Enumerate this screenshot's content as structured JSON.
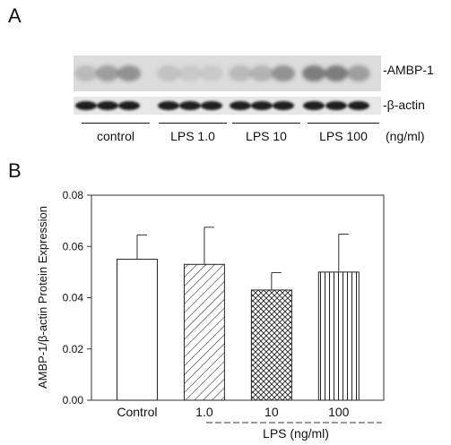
{
  "panel_a": {
    "letter": "A",
    "blot_labels": {
      "ambp": "-AMBP-1",
      "actin": "-β-actin"
    },
    "lane_groups": [
      "control",
      "LPS 1.0",
      "LPS 10",
      "LPS 100"
    ],
    "unit_label": "(ng/ml)",
    "ambp_intensity": [
      0.25,
      0.45,
      0.55,
      0.2,
      0.15,
      0.15,
      0.25,
      0.3,
      0.55,
      0.7,
      0.7,
      0.45
    ]
  },
  "panel_b": {
    "letter": "B"
  },
  "chart_data": {
    "type": "bar",
    "categories": [
      "Control",
      "1.0",
      "10",
      "100"
    ],
    "values": [
      0.055,
      0.053,
      0.043,
      0.05
    ],
    "errors": [
      0.0095,
      0.0145,
      0.0068,
      0.0148
    ],
    "patterns": [
      "none",
      "diagonal",
      "crosshatch",
      "vertical"
    ],
    "ylabel": "AMBP-1/β-actin Protein Expression",
    "xlabel": "LPS (ng/ml)",
    "ylim": [
      0,
      0.08
    ],
    "yticks": [
      "0.00",
      "0.02",
      "0.04",
      "0.06",
      "0.08"
    ],
    "grid": false
  }
}
